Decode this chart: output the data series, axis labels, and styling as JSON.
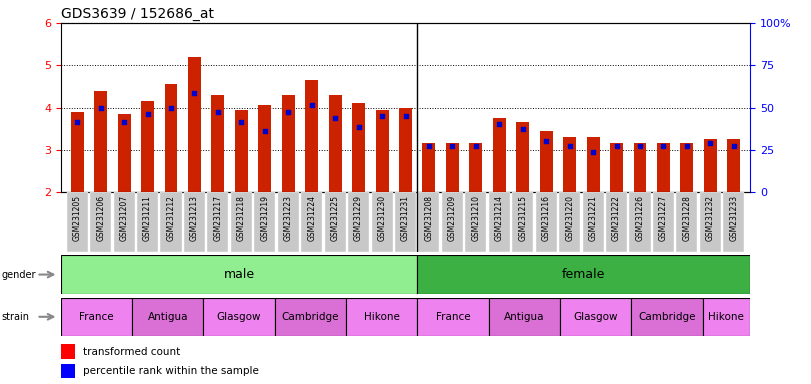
{
  "title": "GDS3639 / 152686_at",
  "samples": [
    "GSM231205",
    "GSM231206",
    "GSM231207",
    "GSM231211",
    "GSM231212",
    "GSM231213",
    "GSM231217",
    "GSM231218",
    "GSM231219",
    "GSM231223",
    "GSM231224",
    "GSM231225",
    "GSM231229",
    "GSM231230",
    "GSM231231",
    "GSM231208",
    "GSM231209",
    "GSM231210",
    "GSM231214",
    "GSM231215",
    "GSM231216",
    "GSM231220",
    "GSM231221",
    "GSM231222",
    "GSM231226",
    "GSM231227",
    "GSM231228",
    "GSM231232",
    "GSM231233"
  ],
  "red_values": [
    3.9,
    4.4,
    3.85,
    4.15,
    4.55,
    5.2,
    4.3,
    3.95,
    4.05,
    4.3,
    4.65,
    4.3,
    4.1,
    3.95,
    4.0,
    3.15,
    3.15,
    3.15,
    3.75,
    3.65,
    3.45,
    3.3,
    3.3,
    3.15,
    3.15,
    3.15,
    3.15,
    3.25,
    3.25
  ],
  "blue_values": [
    3.65,
    4.0,
    3.65,
    3.85,
    4.0,
    4.35,
    3.9,
    3.65,
    3.45,
    3.9,
    4.05,
    3.75,
    3.55,
    3.8,
    3.8,
    3.1,
    3.1,
    3.1,
    3.6,
    3.5,
    3.2,
    3.1,
    2.95,
    3.1,
    3.1,
    3.1,
    3.1,
    3.15,
    3.1
  ],
  "male_color": "#90EE90",
  "female_color": "#3CB043",
  "strain_colors": [
    "#EE82EE",
    "#DA70D6",
    "#EE82EE",
    "#DA70D6",
    "#EE82EE"
  ],
  "strain_labels": [
    "France",
    "Antigua",
    "Glasgow",
    "Cambridge",
    "Hikone"
  ],
  "strain_sizes_male": [
    3,
    3,
    3,
    3,
    3
  ],
  "strain_sizes_female": [
    3,
    3,
    3,
    3,
    2
  ],
  "ylim_left": [
    2.0,
    6.0
  ],
  "ylim_right": [
    0,
    100
  ],
  "yticks_left": [
    2,
    3,
    4,
    5,
    6
  ],
  "yticks_right": [
    0,
    25,
    50,
    75,
    100
  ],
  "ytick_labels_right": [
    "0",
    "25",
    "50",
    "75",
    "100%"
  ],
  "bar_color": "#CC2200",
  "dot_color": "#0000CC",
  "bar_width": 0.55,
  "male_count": 15,
  "female_count": 14
}
